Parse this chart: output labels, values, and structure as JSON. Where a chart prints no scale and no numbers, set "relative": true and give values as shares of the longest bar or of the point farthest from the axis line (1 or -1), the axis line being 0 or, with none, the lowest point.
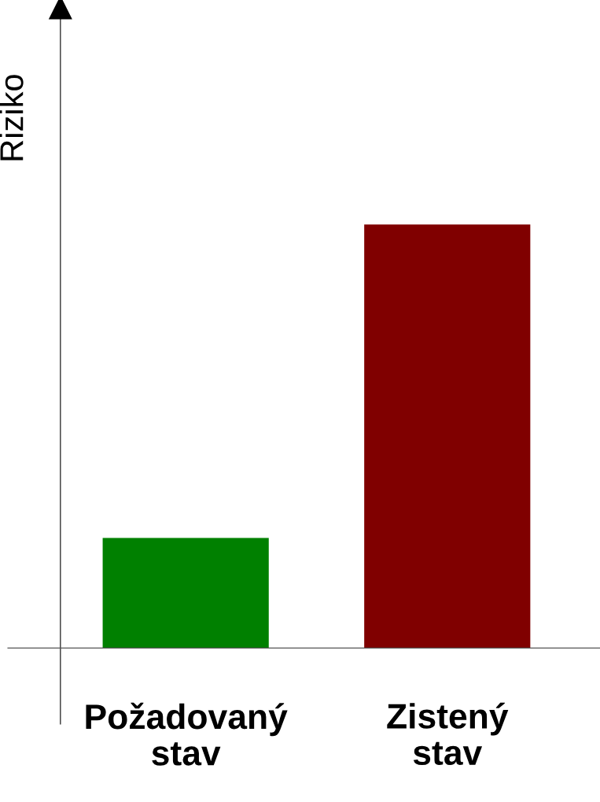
{
  "chart_data": {
    "type": "bar",
    "relative": true,
    "ylabel": "Riziko",
    "categories": [
      "Požadovaný\nstav",
      "Zistený\nstav"
    ],
    "values": [
      0.26,
      1
    ],
    "colors": [
      "#008000",
      "#800000"
    ],
    "grid": false,
    "legend": false
  }
}
